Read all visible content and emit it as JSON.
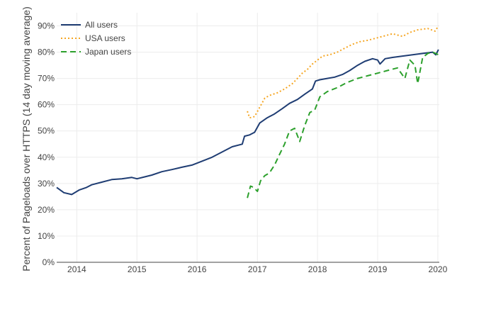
{
  "chart_data": {
    "type": "line",
    "title": "",
    "xlabel": "",
    "ylabel": "Percent of Pageloads over HTTPS (14 day moving average)",
    "x_ticks": [
      "2014",
      "2015",
      "2016",
      "2017",
      "2018",
      "2019",
      "2020"
    ],
    "y_ticks": [
      "0%",
      "10%",
      "20%",
      "30%",
      "40%",
      "50%",
      "60%",
      "70%",
      "80%",
      "90%"
    ],
    "xlim": [
      "2013-09-01",
      "2020-01-10"
    ],
    "ylim": [
      0,
      95
    ],
    "grid": true,
    "legend_position": "top-left",
    "series": [
      {
        "name": "All users",
        "color": "#1f3d73",
        "dash": "solid",
        "points": [
          [
            "2013-09-01",
            28.5
          ],
          [
            "2013-10-15",
            26.5
          ],
          [
            "2013-12-01",
            25.8
          ],
          [
            "2014-01-15",
            27.5
          ],
          [
            "2014-03-01",
            28.5
          ],
          [
            "2014-04-01",
            29.5
          ],
          [
            "2014-06-01",
            30.5
          ],
          [
            "2014-08-01",
            31.5
          ],
          [
            "2014-10-01",
            31.8
          ],
          [
            "2014-12-01",
            32.3
          ],
          [
            "2015-01-01",
            31.8
          ],
          [
            "2015-02-15",
            32.5
          ],
          [
            "2015-04-01",
            33.2
          ],
          [
            "2015-06-01",
            34.5
          ],
          [
            "2015-08-01",
            35.3
          ],
          [
            "2015-10-01",
            36.2
          ],
          [
            "2015-12-01",
            37.0
          ],
          [
            "2016-02-01",
            38.5
          ],
          [
            "2016-04-01",
            40.0
          ],
          [
            "2016-06-01",
            42.0
          ],
          [
            "2016-08-01",
            44.0
          ],
          [
            "2016-10-01",
            45.0
          ],
          [
            "2016-10-15",
            48.0
          ],
          [
            "2016-11-15",
            48.5
          ],
          [
            "2016-12-15",
            49.5
          ],
          [
            "2017-01-15",
            53.0
          ],
          [
            "2017-03-01",
            55.0
          ],
          [
            "2017-04-15",
            56.5
          ],
          [
            "2017-06-01",
            58.5
          ],
          [
            "2017-07-15",
            60.5
          ],
          [
            "2017-09-01",
            62.0
          ],
          [
            "2017-10-15",
            64.0
          ],
          [
            "2017-12-01",
            66.0
          ],
          [
            "2017-12-20",
            69.0
          ],
          [
            "2018-01-15",
            69.5
          ],
          [
            "2018-03-01",
            70.0
          ],
          [
            "2018-04-15",
            70.5
          ],
          [
            "2018-06-01",
            71.5
          ],
          [
            "2018-07-15",
            73.0
          ],
          [
            "2018-09-01",
            75.0
          ],
          [
            "2018-10-15",
            76.5
          ],
          [
            "2018-12-01",
            77.5
          ],
          [
            "2019-01-01",
            77.0
          ],
          [
            "2019-01-15",
            75.5
          ],
          [
            "2019-02-15",
            77.5
          ],
          [
            "2019-04-01",
            78.0
          ],
          [
            "2019-06-01",
            78.5
          ],
          [
            "2019-08-01",
            79.0
          ],
          [
            "2019-10-01",
            79.5
          ],
          [
            "2019-12-01",
            80.0
          ],
          [
            "2019-12-20",
            79.0
          ],
          [
            "2020-01-05",
            81.0
          ]
        ]
      },
      {
        "name": "USA users",
        "color": "#f5a623",
        "dash": "dot",
        "points": [
          [
            "2016-11-01",
            57.5
          ],
          [
            "2016-11-15",
            55.0
          ],
          [
            "2016-12-15",
            55.5
          ],
          [
            "2017-01-15",
            59.0
          ],
          [
            "2017-02-15",
            62.5
          ],
          [
            "2017-03-15",
            63.5
          ],
          [
            "2017-05-01",
            64.5
          ],
          [
            "2017-06-15",
            66.0
          ],
          [
            "2017-08-01",
            68.0
          ],
          [
            "2017-09-01",
            70.0
          ],
          [
            "2017-10-01",
            72.0
          ],
          [
            "2017-11-01",
            73.5
          ],
          [
            "2017-12-01",
            75.5
          ],
          [
            "2018-01-01",
            77.0
          ],
          [
            "2018-02-01",
            78.5
          ],
          [
            "2018-03-15",
            79.0
          ],
          [
            "2018-05-01",
            80.0
          ],
          [
            "2018-06-15",
            81.5
          ],
          [
            "2018-08-01",
            83.0
          ],
          [
            "2018-09-15",
            84.0
          ],
          [
            "2018-11-01",
            84.5
          ],
          [
            "2019-01-01",
            85.5
          ],
          [
            "2019-02-01",
            86.0
          ],
          [
            "2019-04-01",
            87.0
          ],
          [
            "2019-06-01",
            86.0
          ],
          [
            "2019-07-15",
            87.5
          ],
          [
            "2019-09-01",
            88.5
          ],
          [
            "2019-11-01",
            89.0
          ],
          [
            "2019-12-15",
            88.0
          ],
          [
            "2020-01-05",
            90.0
          ]
        ]
      },
      {
        "name": "Japan users",
        "color": "#2ca02c",
        "dash": "dash",
        "points": [
          [
            "2016-11-01",
            24.5
          ],
          [
            "2016-11-20",
            29.0
          ],
          [
            "2016-12-10",
            28.5
          ],
          [
            "2017-01-01",
            27.0
          ],
          [
            "2017-01-20",
            31.0
          ],
          [
            "2017-02-15",
            33.0
          ],
          [
            "2017-03-15",
            34.0
          ],
          [
            "2017-04-15",
            37.0
          ],
          [
            "2017-05-15",
            41.0
          ],
          [
            "2017-06-15",
            45.0
          ],
          [
            "2017-07-15",
            50.0
          ],
          [
            "2017-08-15",
            51.0
          ],
          [
            "2017-09-15",
            46.0
          ],
          [
            "2017-10-15",
            52.0
          ],
          [
            "2017-11-15",
            57.0
          ],
          [
            "2017-12-15",
            58.0
          ],
          [
            "2018-01-15",
            63.0
          ],
          [
            "2018-03-01",
            65.0
          ],
          [
            "2018-05-01",
            66.5
          ],
          [
            "2018-07-01",
            68.5
          ],
          [
            "2018-09-01",
            70.0
          ],
          [
            "2018-11-01",
            71.0
          ],
          [
            "2019-01-01",
            72.0
          ],
          [
            "2019-03-01",
            73.0
          ],
          [
            "2019-05-01",
            74.0
          ],
          [
            "2019-06-15",
            70.0
          ],
          [
            "2019-07-15",
            77.0
          ],
          [
            "2019-08-15",
            75.0
          ],
          [
            "2019-09-01",
            68.0
          ],
          [
            "2019-10-01",
            78.0
          ],
          [
            "2019-11-01",
            79.5
          ],
          [
            "2019-12-01",
            80.0
          ],
          [
            "2020-01-05",
            79.0
          ]
        ]
      }
    ]
  }
}
